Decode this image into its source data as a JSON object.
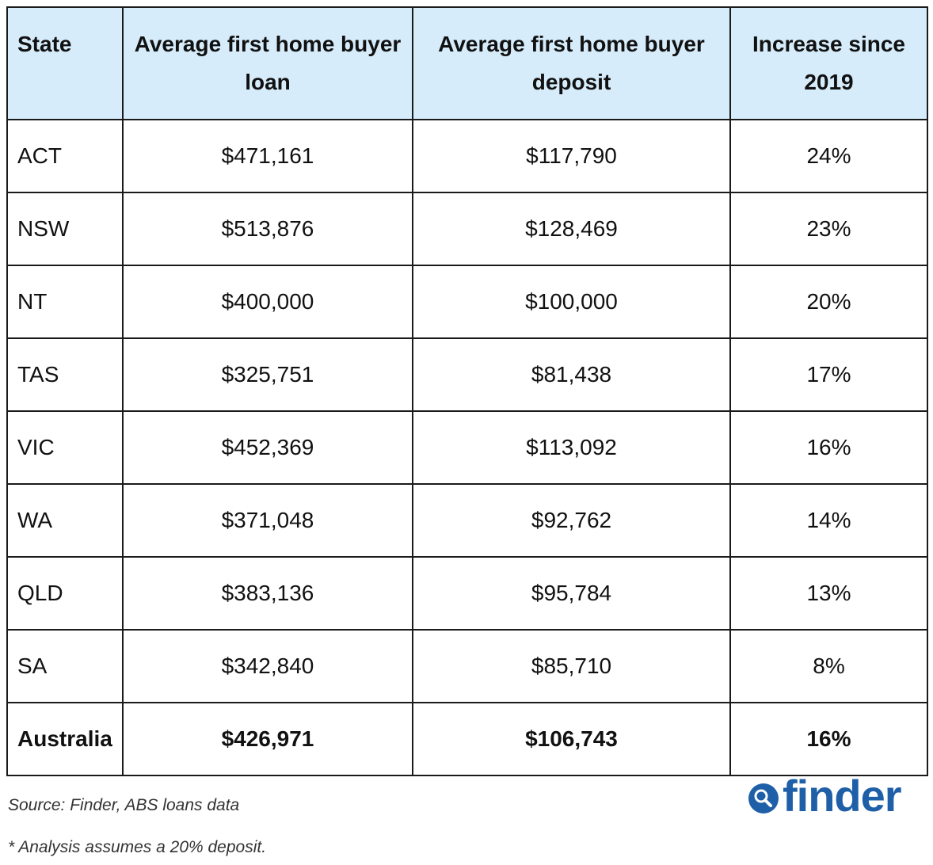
{
  "chart_data": {
    "type": "table",
    "columns": [
      "State",
      "Average first home buyer loan",
      "Average first home buyer deposit",
      "Increase since 2019"
    ],
    "rows": [
      [
        "ACT",
        "$471,161",
        "$117,790",
        "24%"
      ],
      [
        "NSW",
        "$513,876",
        "$128,469",
        "23%"
      ],
      [
        "NT",
        "$400,000",
        "$100,000",
        "20%"
      ],
      [
        "TAS",
        "$325,751",
        "$81,438",
        "17%"
      ],
      [
        "VIC",
        "$452,369",
        "$113,092",
        "16%"
      ],
      [
        "WA",
        "$371,048",
        "$92,762",
        "14%"
      ],
      [
        "QLD",
        "$383,136",
        "$95,784",
        "13%"
      ],
      [
        "SA",
        "$342,840",
        "$85,710",
        "8%"
      ]
    ],
    "total_row": [
      "Australia",
      "$426,971",
      "$106,743",
      "16%"
    ],
    "header_color": "#d6ecfa"
  },
  "source": "Source: Finder, ABS loans data",
  "footnote": "* Analysis assumes a 20% deposit.",
  "logo": {
    "text": "finder",
    "icon": "search-icon",
    "color": "#1f5fa8"
  }
}
